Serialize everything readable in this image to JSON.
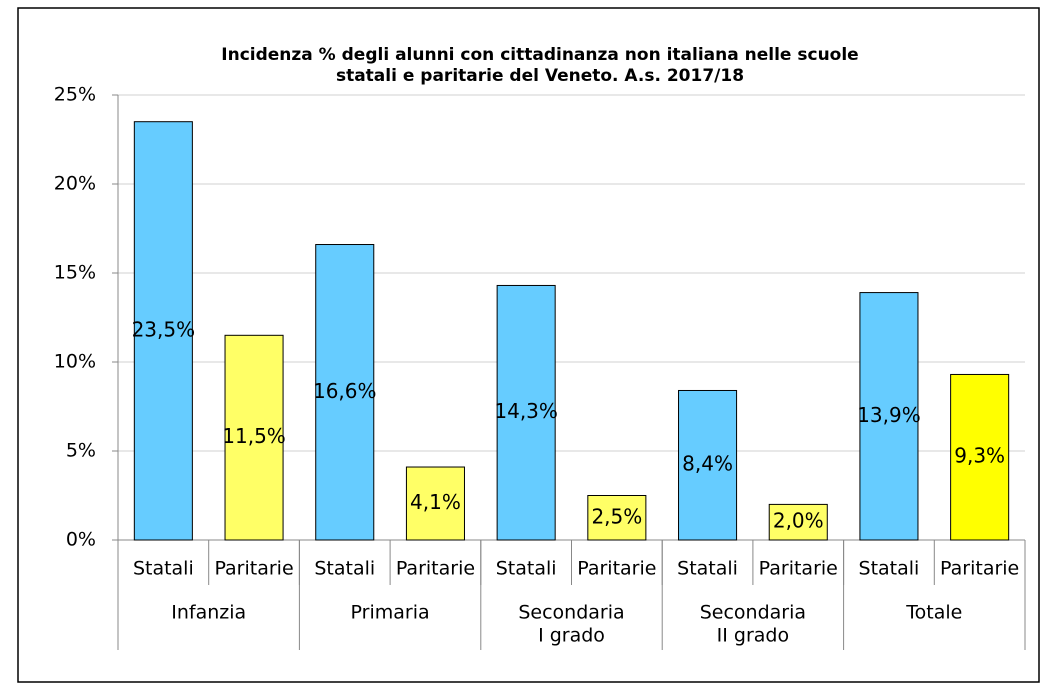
{
  "chart_data": {
    "type": "bar",
    "title": [
      "Incidenza % degli alunni con cittadinanza non italiana nelle scuole",
      "statali e paritarie del Veneto. A.s. 2017/18"
    ],
    "categories": [
      "Statali",
      "Paritarie",
      "Statali",
      "Paritarie",
      "Statali",
      "Paritarie",
      "Statali",
      "Paritarie",
      "Statali",
      "Paritarie"
    ],
    "groups": [
      {
        "name": [
          "Infanzia"
        ],
        "size": 2
      },
      {
        "name": [
          "Primaria"
        ],
        "size": 2
      },
      {
        "name": [
          "Secondaria",
          "I grado"
        ],
        "size": 2
      },
      {
        "name": [
          "Secondaria",
          "II grado"
        ],
        "size": 2
      },
      {
        "name": [
          "Totale"
        ],
        "size": 2
      }
    ],
    "values": [
      23.5,
      11.5,
      16.6,
      4.1,
      14.3,
      2.5,
      8.4,
      2.0,
      13.9,
      9.3
    ],
    "value_labels": [
      "23,5%",
      "11,5%",
      "16,6%",
      "4,1%",
      "14,3%",
      "2,5%",
      "8,4%",
      "2,0%",
      "13,9%",
      "9,3%"
    ],
    "colors": [
      "#66ccff",
      "#ffff66",
      "#66ccff",
      "#ffff66",
      "#66ccff",
      "#ffff66",
      "#66ccff",
      "#ffff66",
      "#66ccff",
      "#ffff00"
    ],
    "ylim": [
      0,
      25
    ],
    "yticks": [
      {
        "value": 0,
        "label": "0%"
      },
      {
        "value": 5,
        "label": "5%"
      },
      {
        "value": 10,
        "label": "10%"
      },
      {
        "value": 15,
        "label": "15%"
      },
      {
        "value": 20,
        "label": "20%"
      },
      {
        "value": 25,
        "label": "25%"
      }
    ],
    "grid": true
  }
}
